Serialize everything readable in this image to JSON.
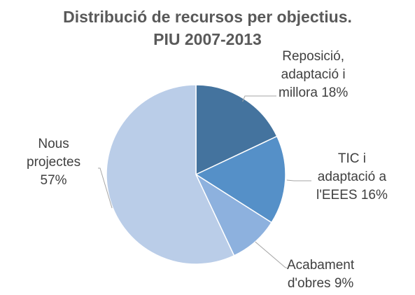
{
  "chart_data": {
    "type": "pie",
    "title_lines": [
      "Distribució de recursos per objectius.",
      "PIU 2007-2013"
    ],
    "slices": [
      {
        "label_lines": [
          "Reposició,",
          "adaptació i",
          "millora 18%"
        ],
        "value": 18,
        "color": "#44739e"
      },
      {
        "label_lines": [
          "TIC i",
          "adaptació a",
          "l'EEES 16%"
        ],
        "value": 16,
        "color": "#5590c8"
      },
      {
        "label_lines": [
          "Acabament",
          "d'obres 9%"
        ],
        "value": 9,
        "color": "#8db1de"
      },
      {
        "label_lines": [
          "Nous",
          "projectes",
          "57%"
        ],
        "value": 57,
        "color": "#bacde8"
      }
    ],
    "legend": "none"
  }
}
